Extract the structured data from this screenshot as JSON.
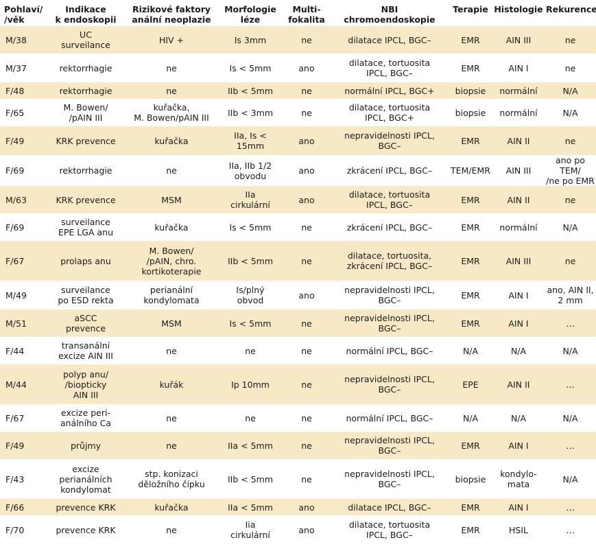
{
  "headers": [
    [
      "Pohlaví/",
      "/věk"
    ],
    [
      "Indikace",
      "k endoskopii"
    ],
    [
      "Rizikové faktory",
      "anální neoplazie"
    ],
    [
      "Morfologie",
      "léze"
    ],
    [
      "Multi-",
      "fokalita"
    ],
    [
      "NBI",
      "chromoendoskopie"
    ],
    [
      "Terapie"
    ],
    [
      "Histologie"
    ],
    [
      "Rekurence"
    ]
  ],
  "rows": [
    [
      [
        "M/38"
      ],
      [
        "UC",
        "surveilance"
      ],
      [
        "HIV +"
      ],
      [
        "Is 3mm"
      ],
      [
        "ne"
      ],
      [
        "dilatace IPCL, BGC–"
      ],
      [
        "EMR"
      ],
      [
        "AIN III"
      ],
      [
        "ne"
      ]
    ],
    [
      [
        "M/37"
      ],
      [
        "rektorrhagie"
      ],
      [
        "ne"
      ],
      [
        "Is < 5mm"
      ],
      [
        "ano"
      ],
      [
        "dilatace, tortuosita",
        "IPCL, BGC–"
      ],
      [
        "EMR"
      ],
      [
        "AIN I"
      ],
      [
        "ne"
      ]
    ],
    [
      [
        "F/48"
      ],
      [
        "rektorrhagie"
      ],
      [
        "ne"
      ],
      [
        "IIb < 5mm"
      ],
      [
        "ne"
      ],
      [
        "normální IPCL, BGC+"
      ],
      [
        "biopsie"
      ],
      [
        "normální"
      ],
      [
        "N/A"
      ]
    ],
    [
      [
        "F/65"
      ],
      [
        "M. Bowen/",
        "/pAIN III"
      ],
      [
        "kuřačka,",
        "M. Bowen/pAIN III"
      ],
      [
        "IIb < 3mm"
      ],
      [
        "ne"
      ],
      [
        "dilatace, tortuosita",
        "IPCL, BGC+"
      ],
      [
        "biopsie"
      ],
      [
        "normální"
      ],
      [
        "N/A"
      ]
    ],
    [
      [
        "F/49"
      ],
      [
        "KRK prevence"
      ],
      [
        "kuřačka"
      ],
      [
        "IIa, Is <",
        "15mm"
      ],
      [
        "ano"
      ],
      [
        "nepravidelnosti IPCL,",
        "BGC–"
      ],
      [
        "EMR"
      ],
      [
        "AIN II"
      ],
      [
        "ne"
      ]
    ],
    [
      [
        "F/69"
      ],
      [
        "rektorrhagie"
      ],
      [
        "ne"
      ],
      [
        "IIa, IIb 1/2",
        "obvodu"
      ],
      [
        "ano"
      ],
      [
        "zkrácení IPCL, BGC–"
      ],
      [
        "TEM/EMR"
      ],
      [
        "AIN III"
      ],
      [
        "ano po TEM/",
        "/ne po EMR"
      ]
    ],
    [
      [
        "M/63"
      ],
      [
        "KRK prevence"
      ],
      [
        "MSM"
      ],
      [
        "IIa",
        "cirkulární"
      ],
      [
        "ano"
      ],
      [
        "dilatace, tortuosita",
        "IPCL, BGC–"
      ],
      [
        "EMR"
      ],
      [
        "AIN II"
      ],
      [
        "ne"
      ]
    ],
    [
      [
        "F/69"
      ],
      [
        "surveilance",
        "EPE LGA anu"
      ],
      [
        "kuřačka"
      ],
      [
        "Is < 5mm"
      ],
      [
        "ne"
      ],
      [
        "zkrácení IPCL, BGC–"
      ],
      [
        "EMR"
      ],
      [
        "normální"
      ],
      [
        "N/A"
      ]
    ],
    [
      [
        "F/67"
      ],
      [
        "prolaps anu"
      ],
      [
        "M. Bowen/",
        "/pAIN, chro.",
        "kortikoterapie"
      ],
      [
        "IIb < 5mm"
      ],
      [
        "ne"
      ],
      [
        "dilatace, tortuosita,",
        "zkrácení IPCL, BGC–"
      ],
      [
        "EMR"
      ],
      [
        "AIN III"
      ],
      [
        "ne"
      ]
    ],
    [
      [
        "M/49"
      ],
      [
        "surveilance",
        "po ESD rekta"
      ],
      [
        "perianální",
        "kondylomata"
      ],
      [
        "Is/plný",
        "obvod"
      ],
      [
        "ano"
      ],
      [
        "nepravidelnosti IPCL,",
        "BGC–"
      ],
      [
        "EMR"
      ],
      [
        "AIN I"
      ],
      [
        "ano, AIN II,",
        "2 mm"
      ]
    ],
    [
      [
        "M/51"
      ],
      [
        "aSCC",
        "prevence"
      ],
      [
        "MSM"
      ],
      [
        "Is < 5mm"
      ],
      [
        "ne"
      ],
      [
        "nepravidelnosti IPCL,",
        "BGC–"
      ],
      [
        "EMR"
      ],
      [
        "AIN I"
      ],
      [
        "…"
      ]
    ],
    [
      [
        "F/44"
      ],
      [
        "transanální",
        "excize AIN III"
      ],
      [
        "ne"
      ],
      [
        "ne"
      ],
      [
        "ne"
      ],
      [
        "normální IPCL, BGC–"
      ],
      [
        "N/A"
      ],
      [
        "N/A"
      ],
      [
        "N/A"
      ]
    ],
    [
      [
        "M/44"
      ],
      [
        "polyp anu/",
        "/biopticky",
        "AIN III"
      ],
      [
        "kuřák"
      ],
      [
        "Ip 10mm"
      ],
      [
        "ne"
      ],
      [
        "nepravidelnosti IPCL,",
        "BGC–"
      ],
      [
        "EPE"
      ],
      [
        "AIN II"
      ],
      [
        "…"
      ]
    ],
    [
      [
        "F/67"
      ],
      [
        "excize peri-",
        "análního Ca"
      ],
      [
        "ne"
      ],
      [
        "ne"
      ],
      [
        "ne"
      ],
      [
        "normální IPCL, BGC–"
      ],
      [
        "N/A"
      ],
      [
        "N/A"
      ],
      [
        "N/A"
      ]
    ],
    [
      [
        "F/49"
      ],
      [
        "průjmy"
      ],
      [
        "ne"
      ],
      [
        "IIa < 5mm"
      ],
      [
        "ne"
      ],
      [
        "nepravidelnosti IPCL,",
        "BGC–"
      ],
      [
        "EMR"
      ],
      [
        "AIN I"
      ],
      [
        "…"
      ]
    ],
    [
      [
        "F/43"
      ],
      [
        "excize",
        "perianálních",
        "kondylomat"
      ],
      [
        "stp. konizaci",
        "děložního čípku"
      ],
      [
        "IIb < 5mm"
      ],
      [
        "ne"
      ],
      [
        "nepravidelnosti IPCL,",
        "BGC–"
      ],
      [
        "biopsie"
      ],
      [
        "kondylo-",
        "mata"
      ],
      [
        "N/A"
      ]
    ],
    [
      [
        "F/66"
      ],
      [
        "prevence KRK"
      ],
      [
        "kuřačka"
      ],
      [
        "IIa < 5mm"
      ],
      [
        "ano"
      ],
      [
        "dilatace IPCL, BGC–"
      ],
      [
        "EMR"
      ],
      [
        "AIN I"
      ],
      [
        "…"
      ]
    ],
    [
      [
        "F/70"
      ],
      [
        "prevence KRK"
      ],
      [
        "ne"
      ],
      [
        "Iia",
        "cirkulární"
      ],
      [
        "ano"
      ],
      [
        "dilatace, tortuosita",
        "IPCL, BGC–"
      ],
      [
        "EMR"
      ],
      [
        "HSIL"
      ],
      [
        "…"
      ]
    ]
  ],
  "colors": {
    "band": "#f7e9c5",
    "text": "#1a1a1a"
  }
}
